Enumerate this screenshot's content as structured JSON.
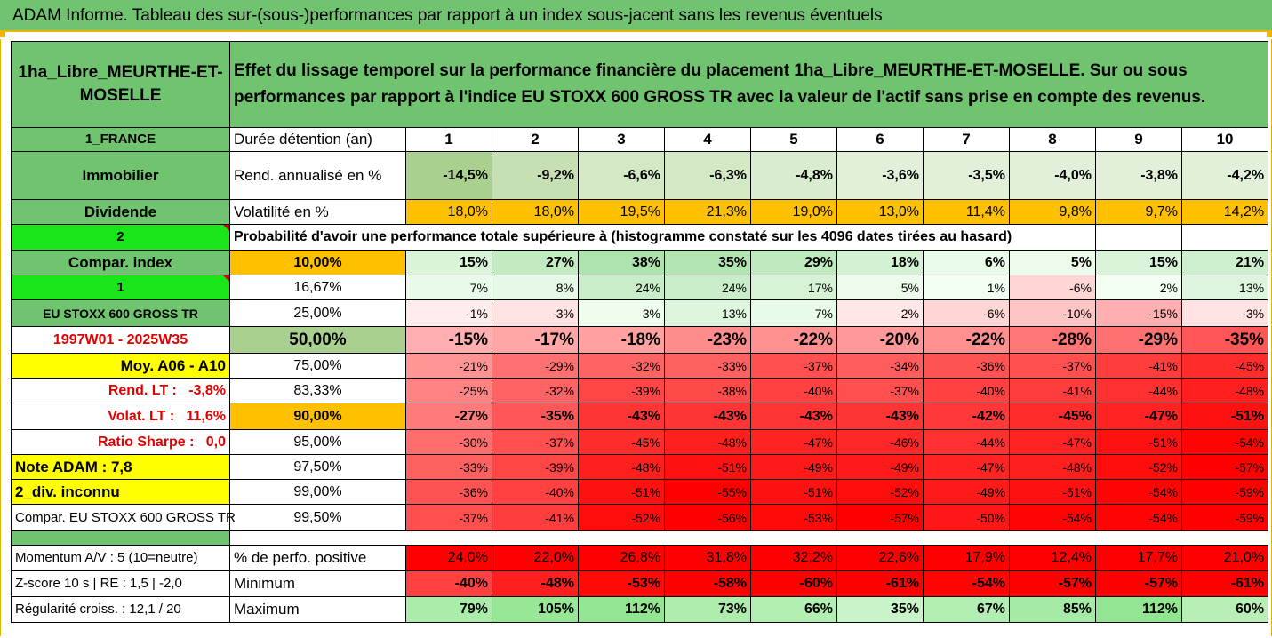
{
  "title": "ADAM Informe. Tableau des sur-(sous-)performances par rapport à un index sous-jacent sans les revenus éventuels",
  "header": {
    "fund": "1ha_Libre_MEURTHE-ET-MOSELLE",
    "description": "Effet du lissage temporel sur la performance financière du placement 1ha_Libre_MEURTHE-ET-MOSELLE. Sur ou sous performances par rapport à l'indice EU STOXX 600 GROSS TR avec la valeur de l'actif sans prise en compte des revenus."
  },
  "left": {
    "country": "1_FRANCE",
    "category": "Immobilier",
    "type": "Dividende",
    "num2": "2",
    "compar_index": "Compar. index",
    "num1": "1",
    "index_name": "EU STOXX 600 GROSS TR",
    "period": "1997W01 - 2025W35",
    "moy": "Moy. A06 - A10",
    "rend_lt": "Rend. LT :   -3,8%",
    "volat_lt": "Volat. LT :   11,6%",
    "sharpe": "Ratio Sharpe :   0,0",
    "note": "Note ADAM : 7,8",
    "div": "2_div. inconnu",
    "compar_full": "Compar. EU STOXX 600 GROSS TR",
    "momentum": "Momentum A/V : 5 (10=neutre)",
    "zscore": "Z-score 10 s  | RE : 1,5  | -2,0",
    "regularite": "Régularité croiss. : 12,1 / 20"
  },
  "row_labels": {
    "duree": "Durée détention (an)",
    "rend": "Rend. annualisé en %",
    "vol": "Volatilité en %",
    "proba": "Probabilité d'avoir une performance totale supérieure à (histogramme constaté sur les 4096 dates tirées au hasard)",
    "pct_pos": "% de perfo. positive",
    "minimum": "Minimum",
    "maximum": "Maximum"
  },
  "years": [
    "1",
    "2",
    "3",
    "4",
    "5",
    "6",
    "7",
    "8",
    "9",
    "10"
  ],
  "rend": [
    "-14,5%",
    "-9,2%",
    "-6,6%",
    "-6,3%",
    "-4,8%",
    "-3,6%",
    "-3,5%",
    "-4,0%",
    "-3,8%",
    "-4,2%"
  ],
  "vol": [
    "18,0%",
    "18,0%",
    "19,5%",
    "21,3%",
    "19,0%",
    "13,0%",
    "11,4%",
    "9,8%",
    "9,7%",
    "14,2%"
  ],
  "percentiles": [
    {
      "p": "10,00%",
      "v": [
        "15%",
        "27%",
        "38%",
        "35%",
        "29%",
        "18%",
        "6%",
        "5%",
        "15%",
        "21%"
      ]
    },
    {
      "p": "16,67%",
      "v": [
        "7%",
        "8%",
        "24%",
        "24%",
        "17%",
        "5%",
        "1%",
        "-6%",
        "2%",
        "13%"
      ]
    },
    {
      "p": "25,00%",
      "v": [
        "-1%",
        "-3%",
        "3%",
        "13%",
        "7%",
        "-2%",
        "-6%",
        "-10%",
        "-15%",
        "-3%"
      ]
    },
    {
      "p": "50,00%",
      "v": [
        "-15%",
        "-17%",
        "-18%",
        "-23%",
        "-22%",
        "-20%",
        "-22%",
        "-28%",
        "-29%",
        "-35%"
      ]
    },
    {
      "p": "75,00%",
      "v": [
        "-21%",
        "-29%",
        "-32%",
        "-33%",
        "-37%",
        "-34%",
        "-36%",
        "-37%",
        "-41%",
        "-45%"
      ]
    },
    {
      "p": "83,33%",
      "v": [
        "-25%",
        "-32%",
        "-39%",
        "-38%",
        "-40%",
        "-37%",
        "-40%",
        "-41%",
        "-44%",
        "-48%"
      ]
    },
    {
      "p": "90,00%",
      "v": [
        "-27%",
        "-35%",
        "-43%",
        "-43%",
        "-43%",
        "-43%",
        "-42%",
        "-45%",
        "-47%",
        "-51%"
      ]
    },
    {
      "p": "95,00%",
      "v": [
        "-30%",
        "-37%",
        "-45%",
        "-48%",
        "-47%",
        "-46%",
        "-44%",
        "-47%",
        "-51%",
        "-54%"
      ]
    },
    {
      "p": "97,50%",
      "v": [
        "-33%",
        "-39%",
        "-48%",
        "-51%",
        "-49%",
        "-49%",
        "-47%",
        "-48%",
        "-52%",
        "-57%"
      ]
    },
    {
      "p": "99,00%",
      "v": [
        "-36%",
        "-40%",
        "-51%",
        "-55%",
        "-51%",
        "-52%",
        "-49%",
        "-51%",
        "-54%",
        "-59%"
      ]
    },
    {
      "p": "99,50%",
      "v": [
        "-37%",
        "-41%",
        "-52%",
        "-56%",
        "-53%",
        "-57%",
        "-50%",
        "-54%",
        "-54%",
        "-59%"
      ]
    }
  ],
  "pct_pos": [
    "24,0%",
    "22,0%",
    "26,8%",
    "31,8%",
    "32,2%",
    "22,6%",
    "17,9%",
    "12,4%",
    "17,7%",
    "21,0%"
  ],
  "minimum": [
    "-40%",
    "-48%",
    "-53%",
    "-58%",
    "-60%",
    "-61%",
    "-54%",
    "-57%",
    "-57%",
    "-61%"
  ],
  "maximum": [
    "79%",
    "105%",
    "112%",
    "73%",
    "66%",
    "35%",
    "67%",
    "85%",
    "112%",
    "60%"
  ],
  "colors": {
    "header_green": "#70c470",
    "bright_green": "#19e619",
    "yellow": "#ffff00",
    "orange": "#ffc000",
    "red_text": "#e00000",
    "strong_red": "#ff0000",
    "light_green": "#c6e0b4"
  }
}
